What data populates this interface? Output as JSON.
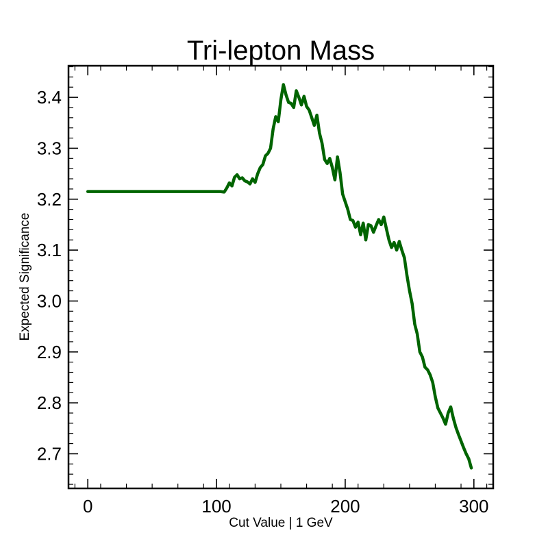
{
  "chart_data": {
    "type": "line",
    "title": "Tri-lepton Mass",
    "xlabel": "Cut Value | 1 GeV",
    "ylabel": "Expected Significance",
    "xlim": [
      -15,
      315
    ],
    "ylim": [
      2.632,
      3.462
    ],
    "xticks": [
      0,
      100,
      200,
      300
    ],
    "yticks": [
      2.7,
      2.8,
      2.9,
      3.0,
      3.1,
      3.2,
      3.3,
      3.4
    ],
    "ytick_labels": [
      "2.7",
      "2.8",
      "2.9",
      "3.0",
      "3.1",
      "3.2",
      "3.3",
      "3.4"
    ],
    "grid": false,
    "legend": "none",
    "series": [
      {
        "color": "#006400",
        "x": [
          0,
          100,
          103,
          106,
          108,
          110,
          112,
          114,
          116,
          118,
          120,
          122,
          124,
          126,
          128,
          130,
          132,
          134,
          136,
          138,
          140,
          142,
          144,
          146,
          148,
          150,
          152,
          154,
          156,
          158,
          160,
          162,
          164,
          166,
          168,
          170,
          172,
          174,
          176,
          178,
          180,
          182,
          184,
          186,
          188,
          190,
          192,
          194,
          196,
          198,
          200,
          202,
          204,
          206,
          208,
          210,
          212,
          214,
          216,
          218,
          220,
          222,
          224,
          226,
          228,
          230,
          232,
          234,
          236,
          238,
          240,
          242,
          244,
          246,
          248,
          250,
          252,
          254,
          256,
          258,
          260,
          262,
          264,
          266,
          268,
          270,
          272,
          274,
          276,
          278,
          280,
          282,
          284,
          286,
          288,
          290,
          292,
          294,
          296,
          298
        ],
        "y": [
          3.215,
          3.215,
          3.215,
          3.214,
          3.222,
          3.232,
          3.226,
          3.243,
          3.248,
          3.24,
          3.242,
          3.236,
          3.234,
          3.23,
          3.24,
          3.233,
          3.25,
          3.262,
          3.268,
          3.285,
          3.29,
          3.3,
          3.338,
          3.362,
          3.352,
          3.395,
          3.425,
          3.405,
          3.39,
          3.388,
          3.38,
          3.413,
          3.4,
          3.385,
          3.402,
          3.382,
          3.375,
          3.36,
          3.345,
          3.365,
          3.33,
          3.31,
          3.278,
          3.27,
          3.28,
          3.262,
          3.238,
          3.283,
          3.252,
          3.21,
          3.195,
          3.18,
          3.16,
          3.158,
          3.145,
          3.155,
          3.13,
          3.153,
          3.12,
          3.15,
          3.148,
          3.135,
          3.148,
          3.16,
          3.15,
          3.165,
          3.142,
          3.12,
          3.105,
          3.115,
          3.1,
          3.117,
          3.1,
          3.085,
          3.05,
          3.02,
          2.995,
          2.955,
          2.935,
          2.9,
          2.89,
          2.87,
          2.865,
          2.855,
          2.84,
          2.812,
          2.79,
          2.78,
          2.77,
          2.758,
          2.78,
          2.792,
          2.77,
          2.752,
          2.738,
          2.725,
          2.712,
          2.7,
          2.69,
          2.672
        ]
      }
    ]
  }
}
